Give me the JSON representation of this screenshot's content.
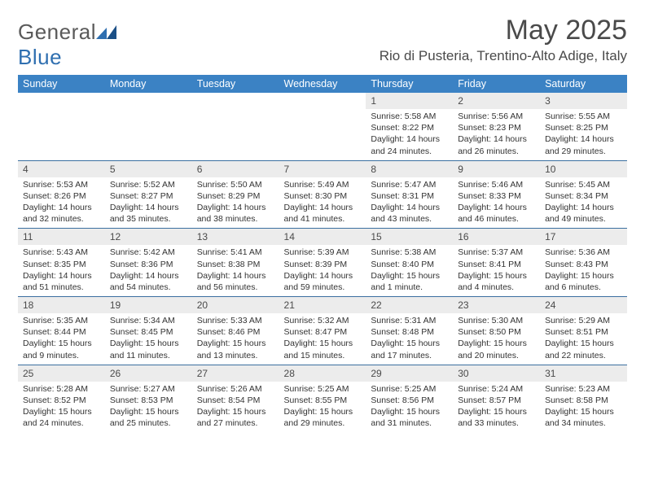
{
  "brand": {
    "text1": "General",
    "text2": "Blue",
    "color_gray": "#5a5a5a",
    "color_blue": "#2f6fb0"
  },
  "title": "May 2025",
  "location": "Rio di Pusteria, Trentino-Alto Adige, Italy",
  "theme": {
    "header_bg": "#3b82c4",
    "header_fg": "#ffffff",
    "daynum_bg": "#ececec",
    "rule_color": "#3b6fa0",
    "body_fg": "#333333"
  },
  "weekdays": [
    "Sunday",
    "Monday",
    "Tuesday",
    "Wednesday",
    "Thursday",
    "Friday",
    "Saturday"
  ],
  "weeks": [
    [
      {
        "n": "",
        "lines": []
      },
      {
        "n": "",
        "lines": []
      },
      {
        "n": "",
        "lines": []
      },
      {
        "n": "",
        "lines": []
      },
      {
        "n": "1",
        "lines": [
          "Sunrise: 5:58 AM",
          "Sunset: 8:22 PM",
          "Daylight: 14 hours and 24 minutes."
        ]
      },
      {
        "n": "2",
        "lines": [
          "Sunrise: 5:56 AM",
          "Sunset: 8:23 PM",
          "Daylight: 14 hours and 26 minutes."
        ]
      },
      {
        "n": "3",
        "lines": [
          "Sunrise: 5:55 AM",
          "Sunset: 8:25 PM",
          "Daylight: 14 hours and 29 minutes."
        ]
      }
    ],
    [
      {
        "n": "4",
        "lines": [
          "Sunrise: 5:53 AM",
          "Sunset: 8:26 PM",
          "Daylight: 14 hours and 32 minutes."
        ]
      },
      {
        "n": "5",
        "lines": [
          "Sunrise: 5:52 AM",
          "Sunset: 8:27 PM",
          "Daylight: 14 hours and 35 minutes."
        ]
      },
      {
        "n": "6",
        "lines": [
          "Sunrise: 5:50 AM",
          "Sunset: 8:29 PM",
          "Daylight: 14 hours and 38 minutes."
        ]
      },
      {
        "n": "7",
        "lines": [
          "Sunrise: 5:49 AM",
          "Sunset: 8:30 PM",
          "Daylight: 14 hours and 41 minutes."
        ]
      },
      {
        "n": "8",
        "lines": [
          "Sunrise: 5:47 AM",
          "Sunset: 8:31 PM",
          "Daylight: 14 hours and 43 minutes."
        ]
      },
      {
        "n": "9",
        "lines": [
          "Sunrise: 5:46 AM",
          "Sunset: 8:33 PM",
          "Daylight: 14 hours and 46 minutes."
        ]
      },
      {
        "n": "10",
        "lines": [
          "Sunrise: 5:45 AM",
          "Sunset: 8:34 PM",
          "Daylight: 14 hours and 49 minutes."
        ]
      }
    ],
    [
      {
        "n": "11",
        "lines": [
          "Sunrise: 5:43 AM",
          "Sunset: 8:35 PM",
          "Daylight: 14 hours and 51 minutes."
        ]
      },
      {
        "n": "12",
        "lines": [
          "Sunrise: 5:42 AM",
          "Sunset: 8:36 PM",
          "Daylight: 14 hours and 54 minutes."
        ]
      },
      {
        "n": "13",
        "lines": [
          "Sunrise: 5:41 AM",
          "Sunset: 8:38 PM",
          "Daylight: 14 hours and 56 minutes."
        ]
      },
      {
        "n": "14",
        "lines": [
          "Sunrise: 5:39 AM",
          "Sunset: 8:39 PM",
          "Daylight: 14 hours and 59 minutes."
        ]
      },
      {
        "n": "15",
        "lines": [
          "Sunrise: 5:38 AM",
          "Sunset: 8:40 PM",
          "Daylight: 15 hours and 1 minute."
        ]
      },
      {
        "n": "16",
        "lines": [
          "Sunrise: 5:37 AM",
          "Sunset: 8:41 PM",
          "Daylight: 15 hours and 4 minutes."
        ]
      },
      {
        "n": "17",
        "lines": [
          "Sunrise: 5:36 AM",
          "Sunset: 8:43 PM",
          "Daylight: 15 hours and 6 minutes."
        ]
      }
    ],
    [
      {
        "n": "18",
        "lines": [
          "Sunrise: 5:35 AM",
          "Sunset: 8:44 PM",
          "Daylight: 15 hours and 9 minutes."
        ]
      },
      {
        "n": "19",
        "lines": [
          "Sunrise: 5:34 AM",
          "Sunset: 8:45 PM",
          "Daylight: 15 hours and 11 minutes."
        ]
      },
      {
        "n": "20",
        "lines": [
          "Sunrise: 5:33 AM",
          "Sunset: 8:46 PM",
          "Daylight: 15 hours and 13 minutes."
        ]
      },
      {
        "n": "21",
        "lines": [
          "Sunrise: 5:32 AM",
          "Sunset: 8:47 PM",
          "Daylight: 15 hours and 15 minutes."
        ]
      },
      {
        "n": "22",
        "lines": [
          "Sunrise: 5:31 AM",
          "Sunset: 8:48 PM",
          "Daylight: 15 hours and 17 minutes."
        ]
      },
      {
        "n": "23",
        "lines": [
          "Sunrise: 5:30 AM",
          "Sunset: 8:50 PM",
          "Daylight: 15 hours and 20 minutes."
        ]
      },
      {
        "n": "24",
        "lines": [
          "Sunrise: 5:29 AM",
          "Sunset: 8:51 PM",
          "Daylight: 15 hours and 22 minutes."
        ]
      }
    ],
    [
      {
        "n": "25",
        "lines": [
          "Sunrise: 5:28 AM",
          "Sunset: 8:52 PM",
          "Daylight: 15 hours and 24 minutes."
        ]
      },
      {
        "n": "26",
        "lines": [
          "Sunrise: 5:27 AM",
          "Sunset: 8:53 PM",
          "Daylight: 15 hours and 25 minutes."
        ]
      },
      {
        "n": "27",
        "lines": [
          "Sunrise: 5:26 AM",
          "Sunset: 8:54 PM",
          "Daylight: 15 hours and 27 minutes."
        ]
      },
      {
        "n": "28",
        "lines": [
          "Sunrise: 5:25 AM",
          "Sunset: 8:55 PM",
          "Daylight: 15 hours and 29 minutes."
        ]
      },
      {
        "n": "29",
        "lines": [
          "Sunrise: 5:25 AM",
          "Sunset: 8:56 PM",
          "Daylight: 15 hours and 31 minutes."
        ]
      },
      {
        "n": "30",
        "lines": [
          "Sunrise: 5:24 AM",
          "Sunset: 8:57 PM",
          "Daylight: 15 hours and 33 minutes."
        ]
      },
      {
        "n": "31",
        "lines": [
          "Sunrise: 5:23 AM",
          "Sunset: 8:58 PM",
          "Daylight: 15 hours and 34 minutes."
        ]
      }
    ]
  ]
}
